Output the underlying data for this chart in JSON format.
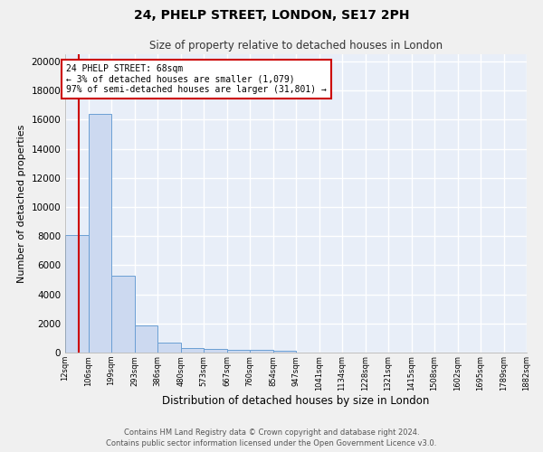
{
  "title": "24, PHELP STREET, LONDON, SE17 2PH",
  "subtitle": "Size of property relative to detached houses in London",
  "xlabel": "Distribution of detached houses by size in London",
  "ylabel": "Number of detached properties",
  "bar_color": "#ccd9f0",
  "bar_edge_color": "#6b9fd4",
  "bg_color": "#e8eef8",
  "grid_color": "#ffffff",
  "fig_color": "#f0f0f0",
  "red_line_x": 68,
  "annotation_title": "24 PHELP STREET: 68sqm",
  "annotation_line1": "← 3% of detached houses are smaller (1,079)",
  "annotation_line2": "97% of semi-detached houses are larger (31,801) →",
  "annotation_box_color": "#ffffff",
  "annotation_box_edge": "#cc0000",
  "red_line_color": "#cc0000",
  "bin_edges": [
    12,
    106,
    199,
    293,
    386,
    480,
    573,
    667,
    760,
    854,
    947,
    1041,
    1134,
    1228,
    1321,
    1415,
    1508,
    1602,
    1695,
    1789,
    1882
  ],
  "bin_values": [
    8100,
    16400,
    5300,
    1850,
    700,
    300,
    230,
    200,
    170,
    150,
    0,
    0,
    0,
    0,
    0,
    0,
    0,
    0,
    0,
    0
  ],
  "ylim": [
    0,
    20500
  ],
  "yticks": [
    0,
    2000,
    4000,
    6000,
    8000,
    10000,
    12000,
    14000,
    16000,
    18000,
    20000
  ],
  "footer_line1": "Contains HM Land Registry data © Crown copyright and database right 2024.",
  "footer_line2": "Contains public sector information licensed under the Open Government Licence v3.0."
}
